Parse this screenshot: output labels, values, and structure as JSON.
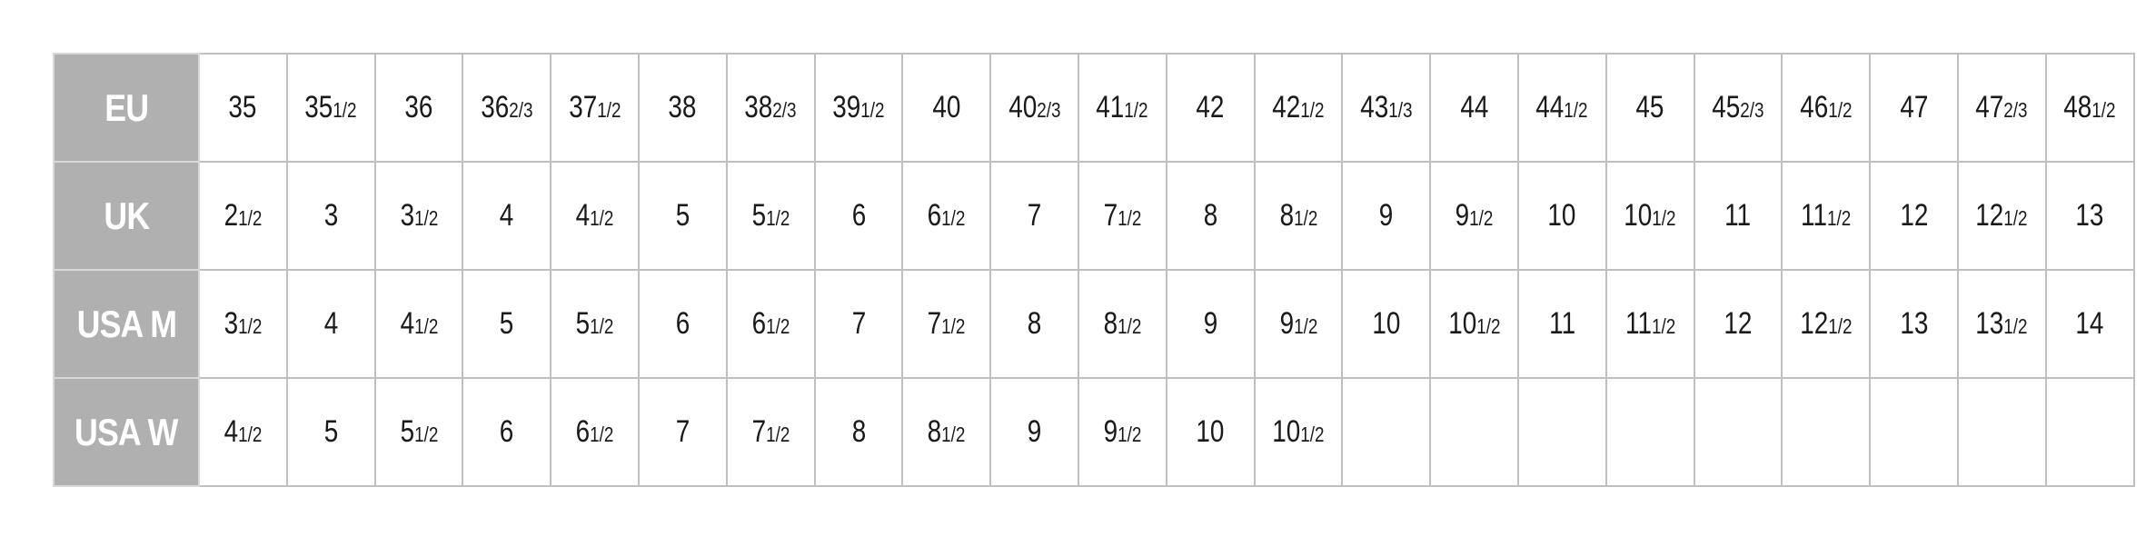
{
  "size_chart": {
    "rows": [
      {
        "label": "EU",
        "cells": [
          {
            "n": "35",
            "f": ""
          },
          {
            "n": "35",
            "f": "1/2"
          },
          {
            "n": "36",
            "f": ""
          },
          {
            "n": "36",
            "f": "2/3"
          },
          {
            "n": "37",
            "f": "1/2"
          },
          {
            "n": "38",
            "f": ""
          },
          {
            "n": "38",
            "f": "2/3"
          },
          {
            "n": "39",
            "f": "1/2"
          },
          {
            "n": "40",
            "f": ""
          },
          {
            "n": "40",
            "f": "2/3"
          },
          {
            "n": "41",
            "f": "1/2"
          },
          {
            "n": "42",
            "f": ""
          },
          {
            "n": "42",
            "f": "1/2"
          },
          {
            "n": "43",
            "f": "1/3"
          },
          {
            "n": "44",
            "f": ""
          },
          {
            "n": "44",
            "f": "1/2"
          },
          {
            "n": "45",
            "f": ""
          },
          {
            "n": "45",
            "f": "2/3"
          },
          {
            "n": "46",
            "f": "1/2"
          },
          {
            "n": "47",
            "f": ""
          },
          {
            "n": "47",
            "f": "2/3"
          },
          {
            "n": "48",
            "f": "1/2"
          }
        ]
      },
      {
        "label": "UK",
        "cells": [
          {
            "n": "2",
            "f": "1/2"
          },
          {
            "n": "3",
            "f": ""
          },
          {
            "n": "3",
            "f": "1/2"
          },
          {
            "n": "4",
            "f": ""
          },
          {
            "n": "4",
            "f": "1/2"
          },
          {
            "n": "5",
            "f": ""
          },
          {
            "n": "5",
            "f": "1/2"
          },
          {
            "n": "6",
            "f": ""
          },
          {
            "n": "6",
            "f": "1/2"
          },
          {
            "n": "7",
            "f": ""
          },
          {
            "n": "7",
            "f": "1/2"
          },
          {
            "n": "8",
            "f": ""
          },
          {
            "n": "8",
            "f": "1/2"
          },
          {
            "n": "9",
            "f": ""
          },
          {
            "n": "9",
            "f": "1/2"
          },
          {
            "n": "10",
            "f": ""
          },
          {
            "n": "10",
            "f": "1/2"
          },
          {
            "n": "11",
            "f": ""
          },
          {
            "n": "11",
            "f": "1/2"
          },
          {
            "n": "12",
            "f": ""
          },
          {
            "n": "12",
            "f": "1/2"
          },
          {
            "n": "13",
            "f": ""
          }
        ]
      },
      {
        "label": "USA M",
        "cells": [
          {
            "n": "3",
            "f": "1/2"
          },
          {
            "n": "4",
            "f": ""
          },
          {
            "n": "4",
            "f": "1/2"
          },
          {
            "n": "5",
            "f": ""
          },
          {
            "n": "5",
            "f": "1/2"
          },
          {
            "n": "6",
            "f": ""
          },
          {
            "n": "6",
            "f": "1/2"
          },
          {
            "n": "7",
            "f": ""
          },
          {
            "n": "7",
            "f": "1/2"
          },
          {
            "n": "8",
            "f": ""
          },
          {
            "n": "8",
            "f": "1/2"
          },
          {
            "n": "9",
            "f": ""
          },
          {
            "n": "9",
            "f": "1/2"
          },
          {
            "n": "10",
            "f": ""
          },
          {
            "n": "10",
            "f": "1/2"
          },
          {
            "n": "11",
            "f": ""
          },
          {
            "n": "11",
            "f": "1/2"
          },
          {
            "n": "12",
            "f": ""
          },
          {
            "n": "12",
            "f": "1/2"
          },
          {
            "n": "13",
            "f": ""
          },
          {
            "n": "13",
            "f": "1/2"
          },
          {
            "n": "14",
            "f": ""
          }
        ]
      },
      {
        "label": "USA W",
        "cells": [
          {
            "n": "4",
            "f": "1/2"
          },
          {
            "n": "5",
            "f": ""
          },
          {
            "n": "5",
            "f": "1/2"
          },
          {
            "n": "6",
            "f": ""
          },
          {
            "n": "6",
            "f": "1/2"
          },
          {
            "n": "7",
            "f": ""
          },
          {
            "n": "7",
            "f": "1/2"
          },
          {
            "n": "8",
            "f": ""
          },
          {
            "n": "8",
            "f": "1/2"
          },
          {
            "n": "9",
            "f": ""
          },
          {
            "n": "9",
            "f": "1/2"
          },
          {
            "n": "10",
            "f": ""
          },
          {
            "n": "10",
            "f": "1/2"
          },
          {
            "n": "",
            "f": ""
          },
          {
            "n": "",
            "f": ""
          },
          {
            "n": "",
            "f": ""
          },
          {
            "n": "",
            "f": ""
          },
          {
            "n": "",
            "f": ""
          },
          {
            "n": "",
            "f": ""
          },
          {
            "n": "",
            "f": ""
          },
          {
            "n": "",
            "f": ""
          },
          {
            "n": "",
            "f": ""
          }
        ]
      }
    ],
    "colors": {
      "header_bg": "#b0b0b0",
      "header_text": "#ffffff",
      "grid": "#c0c0c0",
      "text": "#1a1a1a"
    }
  }
}
